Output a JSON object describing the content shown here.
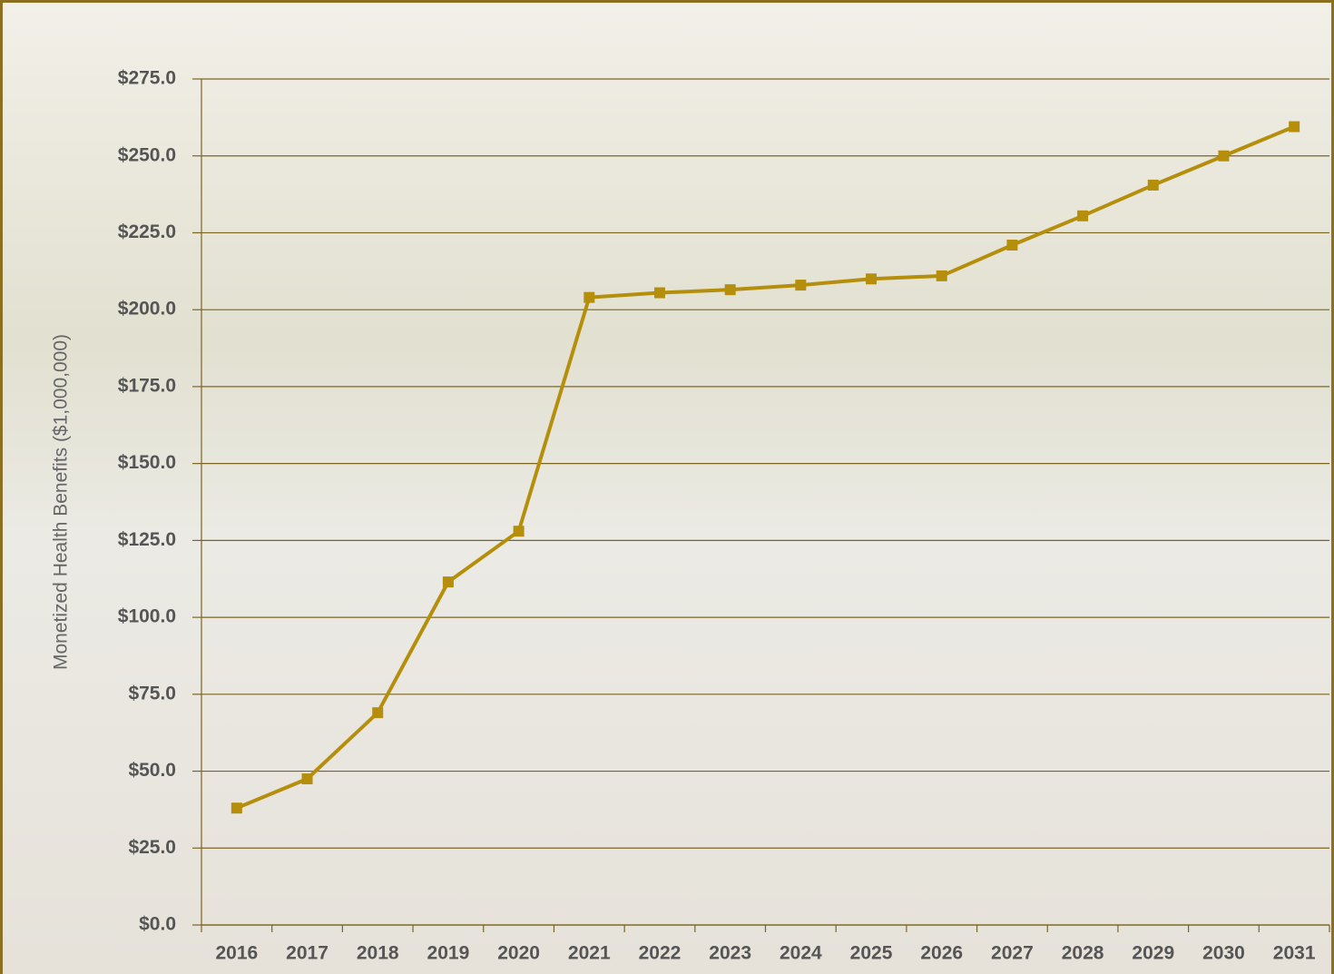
{
  "chart_data": {
    "type": "line",
    "y_label": "Monetized Health Benefits ($1,000,000)",
    "categories": [
      "2016",
      "2017",
      "2018",
      "2019",
      "2020",
      "2021",
      "2022",
      "2023",
      "2024",
      "2025",
      "2026",
      "2027",
      "2028",
      "2029",
      "2030",
      "2031"
    ],
    "series": [
      {
        "color": "#b58e0c",
        "values": [
          38,
          47.5,
          69,
          111.5,
          128,
          204,
          205.5,
          206.5,
          208,
          210,
          211,
          221,
          230.5,
          240.5,
          250,
          259.5
        ]
      }
    ],
    "ylim": [
      0,
      275
    ],
    "yticks": [
      {
        "value": 0,
        "label": "$0.0"
      },
      {
        "value": 25,
        "label": "$25.0"
      },
      {
        "value": 50,
        "label": "$50.0"
      },
      {
        "value": 75,
        "label": "$75.0"
      },
      {
        "value": 100,
        "label": "$100.0"
      },
      {
        "value": 125,
        "label": "$125.0"
      },
      {
        "value": 150,
        "label": "$150.0"
      },
      {
        "value": 175,
        "label": "$175.0"
      },
      {
        "value": 200,
        "label": "$200.0"
      },
      {
        "value": 225,
        "label": "$225.0"
      },
      {
        "value": 250,
        "label": "$250.0"
      },
      {
        "value": 275,
        "label": "$275.0"
      }
    ],
    "grid": true
  }
}
